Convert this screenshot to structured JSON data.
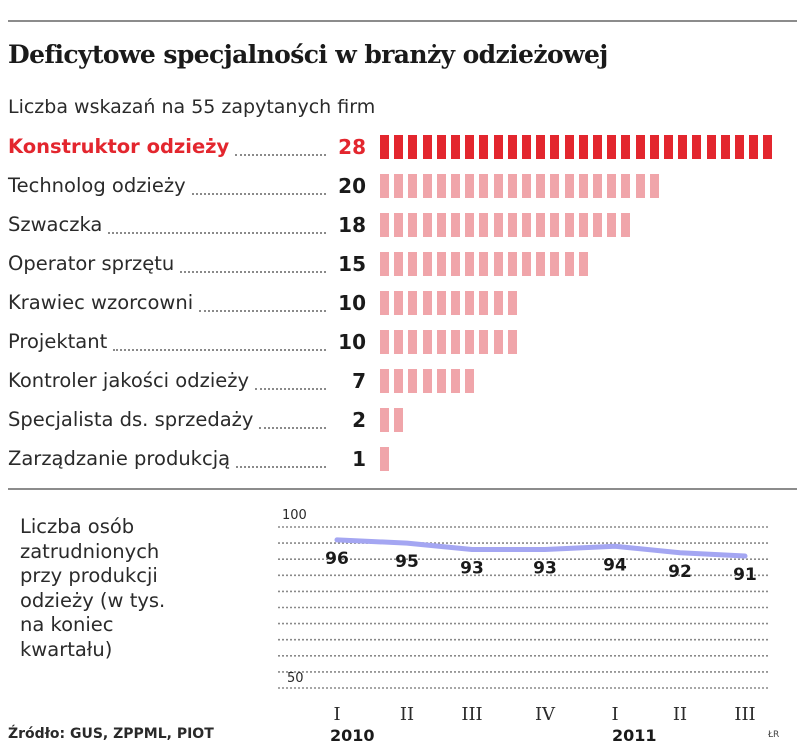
{
  "title": "Deficytowe specjalności w branży odzieżowej",
  "subtitle": "Liczba wskazań na 55 zapytanych firm",
  "colors": {
    "highlight": "#e3262e",
    "bar_pink": "#f0a5aa",
    "line": "#a4a6f2",
    "text": "#1a1a1a"
  },
  "chart_data": [
    {
      "type": "bar",
      "orientation": "horizontal",
      "title": "Deficytowe specjalności w branży odzieżowej",
      "subtitle": "Liczba wskazań na 55 zapytanych firm",
      "categories": [
        "Konstruktor odzieży",
        "Technolog odzieży",
        "Szwaczka",
        "Operator sprzętu",
        "Krawiec wzorcowni",
        "Projektant",
        "Kontroler jakości odzieży",
        "Specjalista ds. sprzedaży",
        "Zarządzanie produkcją"
      ],
      "values": [
        28,
        20,
        18,
        15,
        10,
        10,
        7,
        2,
        1
      ],
      "highlighted": "Konstruktor odzieży"
    },
    {
      "type": "line",
      "ylabel": "Liczba osób zatrudnionych przy produkcji odzieży (w tys. na koniec kwartału)",
      "ylim": [
        50,
        100
      ],
      "yticks": [
        "100",
        "50"
      ],
      "quarters": [
        "I",
        "II",
        "III",
        "IV",
        "I",
        "II",
        "III"
      ],
      "years": [
        "2010",
        "2011"
      ],
      "values": [
        96,
        95,
        93,
        93,
        94,
        92,
        91
      ]
    }
  ],
  "line_label": "Liczba osób\nzatrudnionych\nprzy produkcji\nodzieży (w tys.\nna koniec\nkwartału)",
  "source": "Źródło: GUS, ZPPML, PIOT",
  "credit": "ŁR"
}
